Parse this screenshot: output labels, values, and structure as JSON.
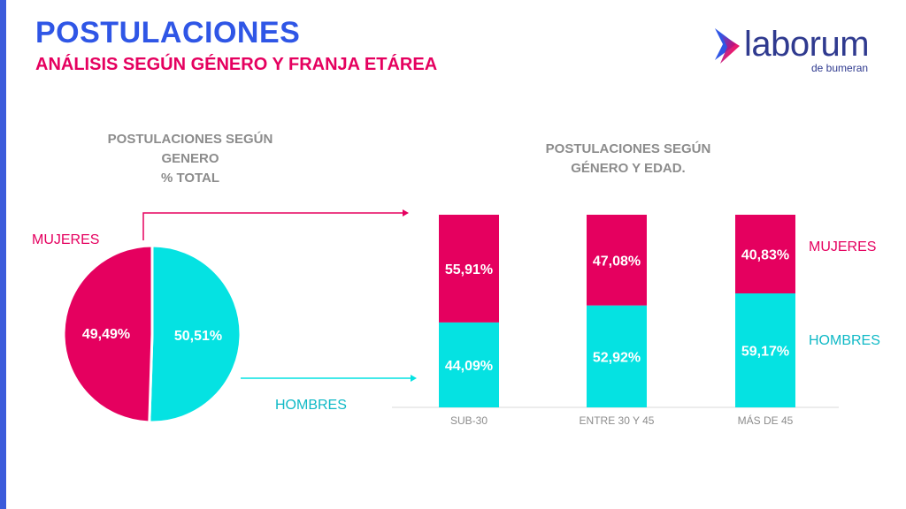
{
  "header": {
    "title": "POSTULACIONES",
    "subtitle": "ANÁLISIS SEGÚN GÉNERO Y FRANJA ETÁREA"
  },
  "logo": {
    "word": "laborum",
    "sub": "de bumeran",
    "icon": "laborum-chevron-icon"
  },
  "colors": {
    "mujeres": "#e5005f",
    "hombres": "#05e2e2",
    "title": "#2f56e6",
    "heading": "#8c8c8c"
  },
  "left_chart": {
    "heading_lines": [
      "POSTULACIONES SEGÚN",
      "GENERO",
      "% TOTAL"
    ],
    "label_mujeres": "MUJERES",
    "label_hombres": "HOMBRES"
  },
  "right_chart": {
    "heading_lines": [
      "POSTULACIONES SEGÚN",
      "GÉNERO Y EDAD."
    ],
    "legend_mujeres": "MUJERES",
    "legend_hombres": "HOMBRES"
  },
  "chart_data": [
    {
      "type": "pie",
      "title": "POSTULACIONES SEGÚN GENERO % TOTAL",
      "slices": [
        {
          "name": "MUJERES",
          "value": 49.49,
          "label": "49,49%"
        },
        {
          "name": "HOMBRES",
          "value": 50.51,
          "label": "50,51%"
        }
      ]
    },
    {
      "type": "bar",
      "stacked": true,
      "title": "POSTULACIONES SEGÚN GÉNERO Y EDAD.",
      "categories": [
        "SUB-30",
        "ENTRE 30 Y 45",
        "MÁS DE 45"
      ],
      "series": [
        {
          "name": "HOMBRES",
          "values": [
            44.09,
            52.92,
            59.17
          ],
          "labels": [
            "44,09%",
            "52,92%",
            "59,17%"
          ]
        },
        {
          "name": "MUJERES",
          "values": [
            55.91,
            47.08,
            40.83
          ],
          "labels": [
            "55,91%",
            "47,08%",
            "40,83%"
          ]
        }
      ],
      "ylim": [
        0,
        100
      ],
      "grid": false,
      "legend": "right"
    }
  ]
}
